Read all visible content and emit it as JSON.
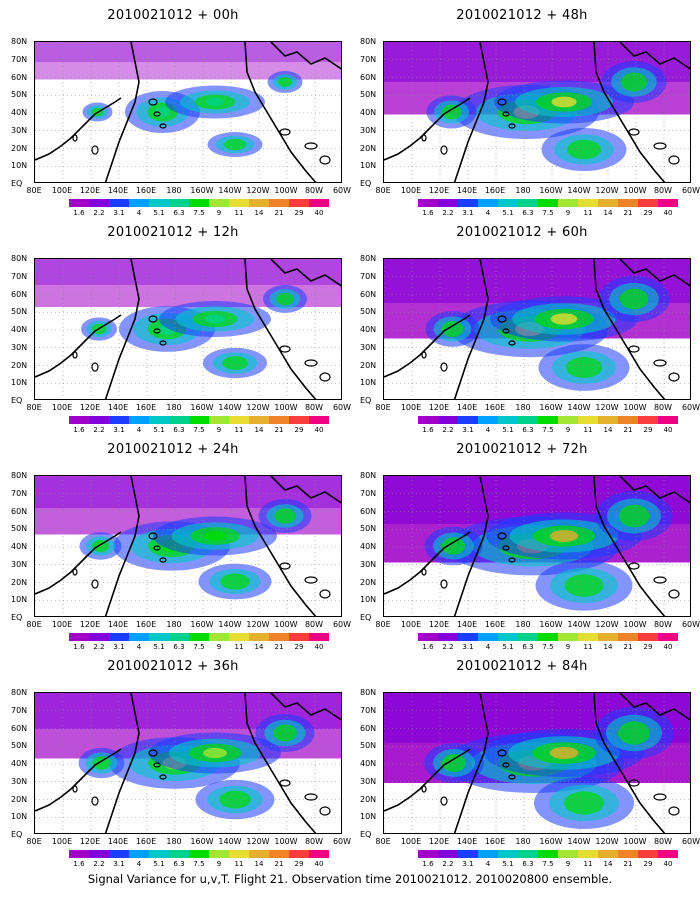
{
  "panels": [
    {
      "title": "2010021012 + 00h"
    },
    {
      "title": "2010021012 + 48h"
    },
    {
      "title": "2010021012 + 12h"
    },
    {
      "title": "2010021012 + 60h"
    },
    {
      "title": "2010021012 + 24h"
    },
    {
      "title": "2010021012 + 72h"
    },
    {
      "title": "2010021012 + 36h"
    },
    {
      "title": "2010021012 + 84h"
    }
  ],
  "lat_labels": [
    "80N",
    "70N",
    "60N",
    "50N",
    "40N",
    "30N",
    "20N",
    "10N",
    "EQ"
  ],
  "lon_labels": [
    "80E",
    "100E",
    "120E",
    "140E",
    "160E",
    "180",
    "160W",
    "140W",
    "120W",
    "100W",
    "80W",
    "60W"
  ],
  "colorbar": {
    "labels": [
      "1.6",
      "2.2",
      "3.1",
      "4",
      "5.1",
      "6.3",
      "7.5",
      "9",
      "11",
      "14",
      "21",
      "29",
      "40"
    ],
    "colors": [
      "#a000c8",
      "#8200dc",
      "#1e3cff",
      "#00a0ff",
      "#00c8c8",
      "#00d28c",
      "#00dc00",
      "#a0e632",
      "#e6dc32",
      "#e6af2d",
      "#f08228",
      "#fa3c3c",
      "#f00082"
    ]
  },
  "caption": "Signal Variance for u,v,T. Flight 21. Observation time 2010021012. 2010020800 ensemble."
}
